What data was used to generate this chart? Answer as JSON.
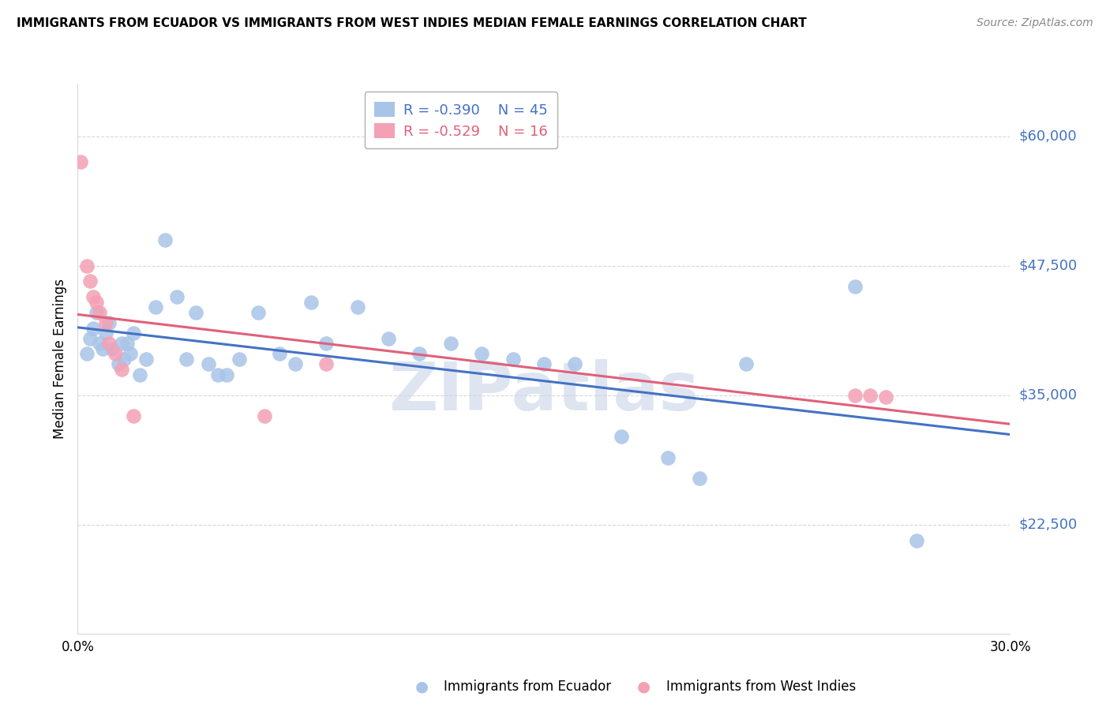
{
  "title": "IMMIGRANTS FROM ECUADOR VS IMMIGRANTS FROM WEST INDIES MEDIAN FEMALE EARNINGS CORRELATION CHART",
  "source": "Source: ZipAtlas.com",
  "ylabel": "Median Female Earnings",
  "xlim": [
    0.0,
    0.3
  ],
  "ylim": [
    12000,
    65000
  ],
  "yticks": [
    22500,
    35000,
    47500,
    60000
  ],
  "ytick_labels": [
    "$22,500",
    "$35,000",
    "$47,500",
    "$60,000"
  ],
  "xticks": [
    0.0,
    0.05,
    0.1,
    0.15,
    0.2,
    0.25,
    0.3
  ],
  "xtick_labels": [
    "0.0%",
    "",
    "",
    "",
    "",
    "",
    "30.0%"
  ],
  "ecuador_color": "#a8c4e8",
  "west_indies_color": "#f4a0b5",
  "ecuador_line_color": "#4472c4",
  "west_indies_line_color": "#e0607a",
  "R_ecuador": -0.39,
  "N_ecuador": 45,
  "R_west_indies": -0.529,
  "N_west_indies": 16,
  "ecuador_scatter": [
    [
      0.003,
      39000
    ],
    [
      0.004,
      40500
    ],
    [
      0.005,
      41500
    ],
    [
      0.006,
      43000
    ],
    [
      0.007,
      40000
    ],
    [
      0.008,
      39500
    ],
    [
      0.009,
      41000
    ],
    [
      0.01,
      42000
    ],
    [
      0.011,
      39500
    ],
    [
      0.013,
      38000
    ],
    [
      0.014,
      40000
    ],
    [
      0.015,
      38500
    ],
    [
      0.016,
      40000
    ],
    [
      0.017,
      39000
    ],
    [
      0.018,
      41000
    ],
    [
      0.02,
      37000
    ],
    [
      0.022,
      38500
    ],
    [
      0.025,
      43500
    ],
    [
      0.028,
      50000
    ],
    [
      0.032,
      44500
    ],
    [
      0.035,
      38500
    ],
    [
      0.038,
      43000
    ],
    [
      0.042,
      38000
    ],
    [
      0.045,
      37000
    ],
    [
      0.048,
      37000
    ],
    [
      0.052,
      38500
    ],
    [
      0.058,
      43000
    ],
    [
      0.065,
      39000
    ],
    [
      0.07,
      38000
    ],
    [
      0.075,
      44000
    ],
    [
      0.08,
      40000
    ],
    [
      0.09,
      43500
    ],
    [
      0.1,
      40500
    ],
    [
      0.11,
      39000
    ],
    [
      0.12,
      40000
    ],
    [
      0.13,
      39000
    ],
    [
      0.14,
      38500
    ],
    [
      0.15,
      38000
    ],
    [
      0.16,
      38000
    ],
    [
      0.175,
      31000
    ],
    [
      0.19,
      29000
    ],
    [
      0.2,
      27000
    ],
    [
      0.215,
      38000
    ],
    [
      0.25,
      45500
    ],
    [
      0.27,
      21000
    ]
  ],
  "west_indies_scatter": [
    [
      0.001,
      57500
    ],
    [
      0.003,
      47500
    ],
    [
      0.004,
      46000
    ],
    [
      0.005,
      44500
    ],
    [
      0.006,
      44000
    ],
    [
      0.007,
      43000
    ],
    [
      0.009,
      42000
    ],
    [
      0.01,
      40000
    ],
    [
      0.012,
      39000
    ],
    [
      0.014,
      37500
    ],
    [
      0.018,
      33000
    ],
    [
      0.06,
      33000
    ],
    [
      0.08,
      38000
    ],
    [
      0.25,
      35000
    ],
    [
      0.255,
      35000
    ],
    [
      0.26,
      34800
    ]
  ],
  "background_color": "#ffffff",
  "grid_color": "#d8d8d8",
  "watermark": "ZIPatlas",
  "watermark_color": "#c8d4e8",
  "bottom_legend_ecuador": "Immigrants from Ecuador",
  "bottom_legend_wi": "Immigrants from West Indies"
}
